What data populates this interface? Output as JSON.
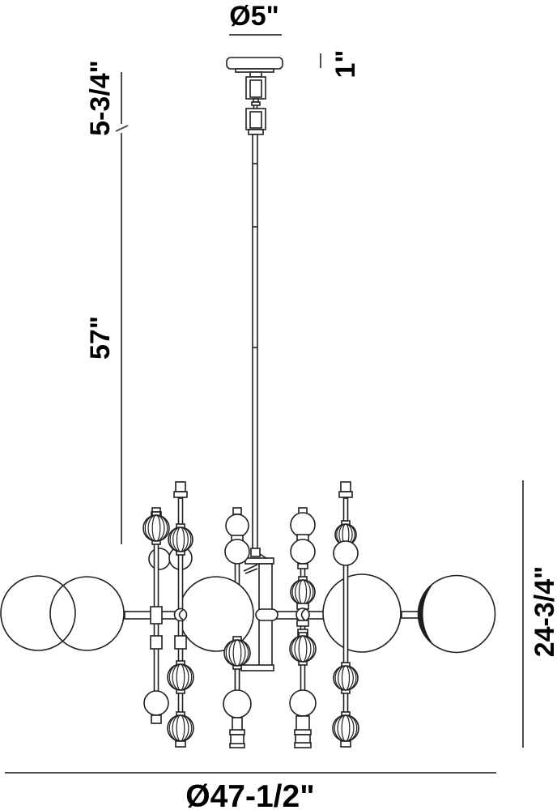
{
  "title": "Chandelier dimension drawing",
  "dimensions": {
    "canopy_diameter": "Ø5\"",
    "canopy_height": "1\"",
    "hanger_height": "5-3/4\"",
    "rod_drop": "57\"",
    "fixture_height": "24-3/4\"",
    "fixture_width": "Ø47-1/2\""
  },
  "colors": {
    "drawing_line": "#1f1f1f",
    "dimension_line": "#4d4d4d",
    "label_text": "#000000",
    "background": "#ffffff",
    "globe_shade": "#1d1d1d"
  },
  "figure": {
    "shapes": [
      [
        "r",
        280,
        71,
        69,
        14,
        5
      ],
      [
        "r",
        291,
        85,
        47,
        4
      ],
      [
        "r",
        309,
        89,
        14,
        6
      ],
      [
        "r",
        304,
        95,
        24,
        27
      ],
      [
        "r",
        309,
        99,
        14,
        21
      ],
      [
        "r",
        313,
        122,
        6,
        4
      ],
      [
        "r",
        311,
        126,
        10,
        4
      ],
      [
        "l",
        313.5,
        130,
        313.5,
        134
      ],
      [
        "l",
        317.5,
        130,
        317.5,
        134
      ],
      [
        "r",
        304,
        134,
        24,
        26
      ],
      [
        "r",
        309,
        138,
        14,
        20
      ],
      [
        "r",
        307,
        160,
        18,
        6
      ],
      [
        "r",
        312,
        166,
        6,
        516
      ],
      [
        "l",
        312,
        202,
        318,
        202
      ],
      [
        "l",
        312,
        280,
        318,
        280
      ],
      [
        "l",
        312,
        429,
        318,
        429
      ],
      [
        "r",
        310,
        677,
        11,
        10
      ],
      [
        "l",
        321,
        684,
        332,
        691
      ],
      [
        "r",
        303,
        689,
        35,
        7
      ],
      [
        "r",
        320,
        696,
        16,
        126
      ],
      [
        "r",
        298,
        821,
        40,
        7
      ],
      [
        "l",
        318,
        697,
        301,
        705
      ],
      [
        "l",
        318,
        702,
        303,
        708
      ],
      [
        "r",
        288,
        627,
        10,
        8
      ],
      [
        "r",
        290.5,
        635,
        5,
        268
      ],
      [
        "c",
        293,
        649,
        14
      ],
      [
        "r",
        286,
        661,
        14,
        7
      ],
      [
        "c",
        293,
        681,
        15
      ],
      [
        "r",
        154,
        755,
        68,
        9
      ],
      [
        "r",
        336,
        755,
        64,
        9
      ],
      [
        "r",
        316,
        752,
        27,
        14,
        7
      ],
      [
        "r",
        496,
        755,
        21,
        8
      ],
      [
        "c",
        47,
        757,
        46,
        "n"
      ],
      [
        "c",
        107.5,
        757.5,
        45.5,
        "n"
      ],
      [
        "c",
        267,
        758,
        46
      ],
      [
        "c",
        447,
        757,
        48
      ],
      [
        "c",
        564,
        758,
        47.5
      ],
      [
        "p",
        "M533,723 A47.5,47.5 0 0 0 533,793 A42,52 0 0 1 533,723 Z",
        "f"
      ],
      [
        "r",
        290.5,
        796,
        5,
        107
      ],
      [
        "rb",
        293,
        806,
        16
      ],
      [
        "c",
        293,
        869,
        17
      ],
      [
        "r",
        287,
        886,
        12,
        16
      ],
      [
        "r",
        284,
        901,
        18,
        6
      ],
      [
        "r",
        285,
        907,
        16,
        12
      ],
      [
        "r",
        284,
        918,
        18,
        5
      ],
      [
        "c",
        197,
        690,
        13
      ],
      [
        "r",
        190.5,
        636,
        5,
        230
      ],
      [
        "r",
        188,
        627,
        10,
        6
      ],
      [
        "r",
        187,
        632,
        12,
        5
      ],
      [
        "rb",
        193,
        652,
        16
      ],
      [
        "r",
        186,
        749,
        14,
        21
      ],
      [
        "r",
        186,
        785,
        14,
        16
      ],
      [
        "c",
        193,
        868,
        15
      ],
      [
        "r",
        187,
        883,
        12,
        10
      ],
      [
        "c",
        223,
        689,
        14
      ],
      [
        "r",
        220.5,
        615,
        5,
        300
      ],
      [
        "r",
        217,
        595,
        12,
        12
      ],
      [
        "r",
        215,
        607,
        16,
        7
      ],
      [
        "rb",
        223,
        666,
        15
      ],
      [
        "c",
        223,
        759,
        7.5
      ],
      [
        "p",
        "M226,753 Q217,759 226,765"
      ],
      [
        "r",
        216,
        785,
        14,
        16
      ],
      [
        "rb",
        223,
        836,
        16
      ],
      [
        "rb",
        223,
        899,
        16
      ],
      [
        "r",
        217,
        915,
        12,
        7
      ],
      [
        "r",
        371.5,
        634,
        5,
        252
      ],
      [
        "r",
        369,
        627,
        10,
        7
      ],
      [
        "c",
        374,
        648,
        15
      ],
      [
        "r",
        367,
        660,
        14,
        7
      ],
      [
        "c",
        374,
        681,
        15
      ],
      [
        "r",
        368,
        696,
        12,
        6
      ],
      [
        "rb",
        374,
        731,
        15
      ],
      [
        "r",
        367,
        745,
        14,
        7
      ],
      [
        "c",
        374,
        759,
        8
      ],
      [
        "p",
        "M377,752 Q368,759 377,766"
      ],
      [
        "r",
        367,
        766,
        14,
        7
      ],
      [
        "r",
        368,
        777,
        12,
        9
      ],
      [
        "rb",
        374,
        801,
        16
      ],
      [
        "c",
        374,
        868,
        16
      ],
      [
        "r",
        366,
        884,
        16,
        18
      ],
      [
        "r",
        364,
        901,
        20,
        6
      ],
      [
        "r",
        365,
        907,
        18,
        11
      ],
      [
        "r",
        364,
        917,
        20,
        6
      ],
      [
        "r",
        424.5,
        615,
        5,
        300
      ],
      [
        "r",
        421,
        595,
        12,
        12
      ],
      [
        "r",
        419,
        607,
        16,
        7
      ],
      [
        "rb",
        427,
        660,
        13
      ],
      [
        "c",
        427,
        683,
        15
      ],
      [
        "rb",
        427,
        837,
        15
      ],
      [
        "rb",
        427,
        899,
        16
      ],
      [
        "r",
        421,
        915,
        12,
        7
      ]
    ]
  }
}
